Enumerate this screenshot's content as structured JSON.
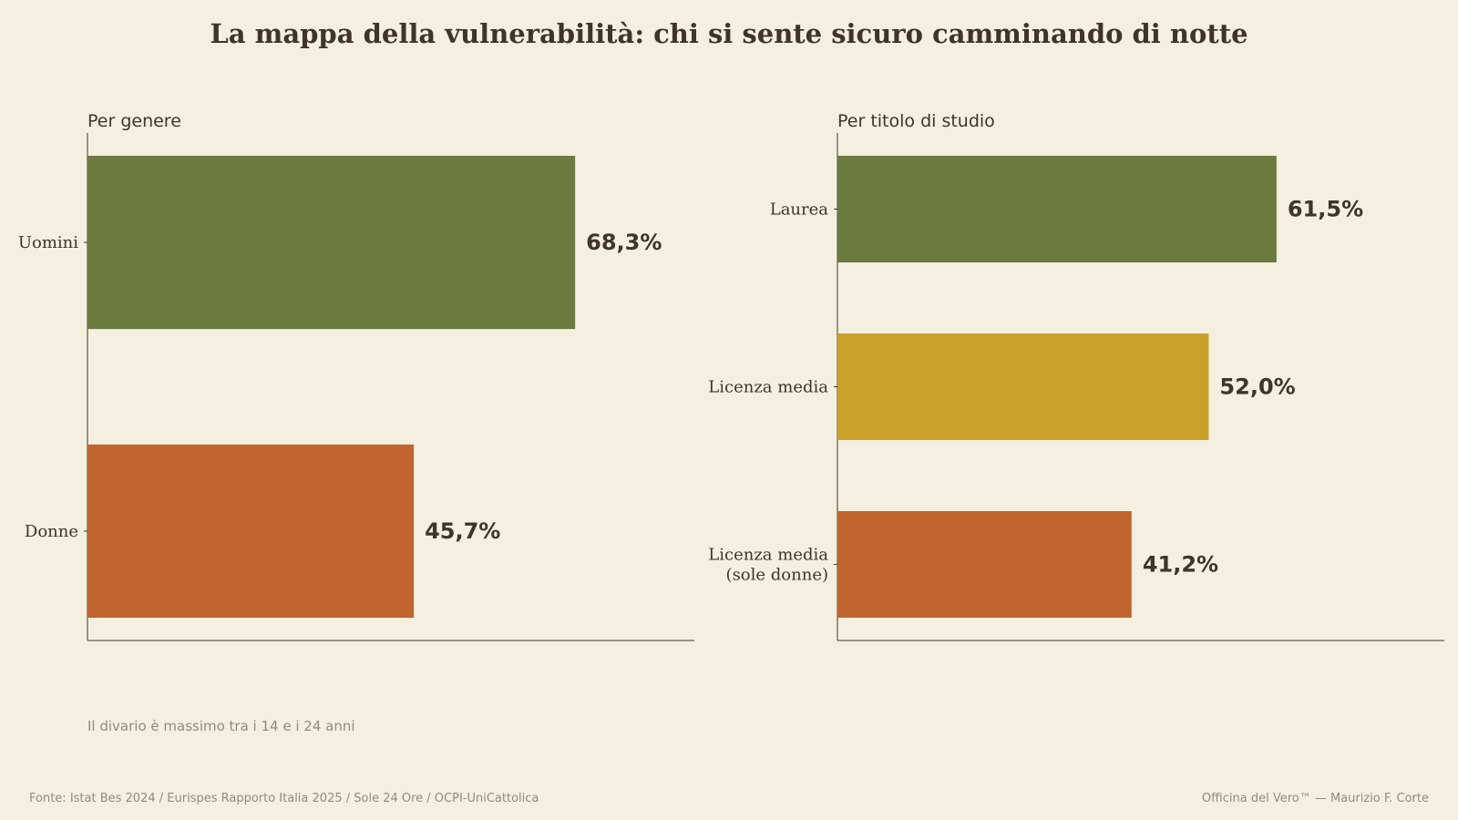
{
  "title": "La mappa della vulnerabilità: chi si sente sicuro camminando di notte",
  "note": "Il divario è massimo tra i 14 e i 24 anni",
  "source": "Fonte: Istat Bes 2024 / Eurispes Rapporto Italia 2025 / Sole 24 Ore / OCPI-UniCattolica",
  "credit": "Officina del Vero™ — Maurizio F. Corte",
  "colors": {
    "green": "#6b7a3e",
    "gold": "#c9a12a",
    "orange": "#c0652d",
    "text": "#3e3526",
    "muted": "#948a78",
    "background": "#f5efe0"
  },
  "chart_data": [
    {
      "type": "bar",
      "orientation": "horizontal",
      "title": "Per genere",
      "categories": [
        "Uomini",
        "Donne"
      ],
      "values": [
        68.3,
        45.7
      ],
      "value_labels": [
        "68,3%",
        "45,7%"
      ],
      "colors": [
        "#6b7a3e",
        "#c0652d"
      ],
      "xlim": [
        0,
        85
      ],
      "grid": false
    },
    {
      "type": "bar",
      "orientation": "horizontal",
      "title": "Per titolo di studio",
      "categories": [
        "Laurea",
        "Licenza media",
        "Licenza media\n(sole donne)"
      ],
      "values": [
        61.5,
        52.0,
        41.2
      ],
      "value_labels": [
        "61,5%",
        "52,0%",
        "41,2%"
      ],
      "colors": [
        "#6b7a3e",
        "#c9a12a",
        "#c0652d"
      ],
      "xlim": [
        0,
        85
      ],
      "grid": false
    }
  ]
}
